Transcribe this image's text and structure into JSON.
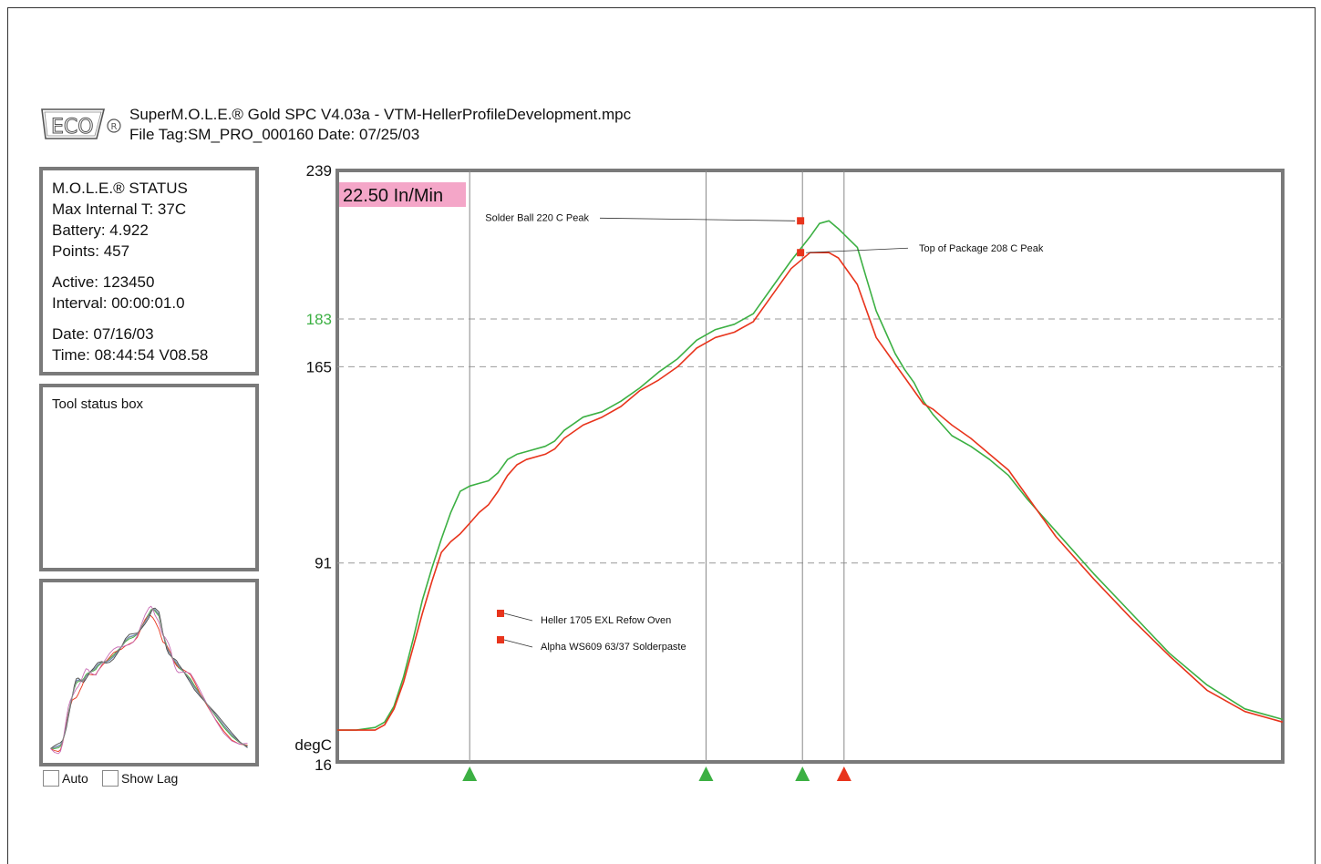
{
  "header": {
    "logo_icon": "eco-logo-icon",
    "line1": "SuperM.O.L.E.® Gold SPC  V4.03a - VTM-HellerProfileDevelopment.mpc",
    "line2": "File Tag:SM_PRO_000160    Date: 07/25/03"
  },
  "status": {
    "title": "M.O.L.E.® STATUS",
    "max_internal": "Max Internal T: 37C",
    "battery": "Battery: 4.922",
    "points": "Points: 457",
    "active": "Active: 123450",
    "interval": "Interval: 00:00:01.0",
    "date": "Date: 07/16/03",
    "time": "Time: 08:44:54  V08.58"
  },
  "tool_status": {
    "label": "Tool status box"
  },
  "controls": {
    "auto_label": "Auto",
    "show_lag_label": "Show Lag"
  },
  "chart_data": {
    "type": "line",
    "ylabel": "degC",
    "ylim": [
      16,
      239
    ],
    "yticks": [
      "239",
      "183",
      "165",
      "91",
      "16"
    ],
    "gridlines": [
      183,
      165,
      91
    ],
    "highlight_tick": "183",
    "speed_label": "22.50 In/Min",
    "colors": {
      "green": "#3cb043",
      "red": "#e8341c",
      "highlight": "#3cb043",
      "speed_bg": "#f4a6c8"
    },
    "series": [
      {
        "color": "#3cb043",
        "x": [
          0,
          2,
          4,
          5,
          6,
          7,
          8,
          9,
          10,
          11,
          12,
          13,
          14,
          15,
          16,
          17,
          18,
          19,
          20,
          22,
          23,
          24,
          26,
          28,
          30,
          32,
          34,
          36,
          38,
          40,
          42,
          44,
          46,
          48,
          50,
          51,
          52,
          53,
          55,
          56,
          57,
          58,
          59,
          60,
          61,
          62,
          63,
          64,
          65,
          67,
          69,
          71,
          73,
          76,
          80,
          84,
          88,
          92,
          96,
          100
        ],
        "y": [
          28,
          28,
          29,
          31,
          37,
          48,
          62,
          77,
          89,
          100,
          110,
          118,
          120,
          121,
          122,
          125,
          130,
          132,
          133,
          135,
          137,
          141,
          146,
          148,
          152,
          157,
          163,
          168,
          175,
          179,
          181,
          185,
          195,
          205,
          214,
          219,
          220,
          217,
          210,
          198,
          186,
          178,
          170,
          164,
          159,
          152,
          147,
          143,
          139,
          135,
          130,
          124,
          115,
          103,
          87,
          72,
          57,
          45,
          36,
          32
        ]
      },
      {
        "color": "#e8341c",
        "x": [
          0,
          2,
          4,
          5,
          6,
          7,
          8,
          9,
          10,
          11,
          12,
          13,
          14,
          15,
          16,
          17,
          18,
          19,
          20,
          22,
          23,
          24,
          26,
          28,
          30,
          32,
          34,
          36,
          38,
          40,
          42,
          44,
          46,
          48,
          50,
          51,
          52,
          53,
          55,
          56,
          57,
          58,
          59,
          60,
          61,
          62,
          63,
          64,
          65,
          67,
          69,
          71,
          73,
          76,
          80,
          84,
          88,
          92,
          96,
          100
        ],
        "y": [
          28,
          28,
          28,
          30,
          36,
          46,
          59,
          72,
          84,
          95,
          99,
          102,
          106,
          110,
          113,
          118,
          124,
          128,
          130,
          132,
          134,
          138,
          143,
          146,
          150,
          156,
          160,
          165,
          172,
          176,
          178,
          182,
          192,
          202,
          208,
          208,
          208,
          206,
          196,
          186,
          176,
          171,
          166,
          161,
          156,
          151,
          149,
          146,
          143,
          138,
          132,
          126,
          116,
          101,
          85,
          70,
          56,
          43,
          35,
          31
        ]
      }
    ],
    "markers": [
      {
        "x": 14,
        "color": "#3cb043"
      },
      {
        "x": 39,
        "color": "#3cb043"
      },
      {
        "x": 49.2,
        "color": "#3cb043"
      },
      {
        "x": 53.6,
        "color": "#e8341c"
      }
    ],
    "annotations": [
      {
        "text": "Solder Ball 220 C Peak",
        "x": 49,
        "y": 220,
        "side": "left"
      },
      {
        "text": "Top of Package 208 C Peak",
        "x": 49,
        "y": 208,
        "side": "right"
      }
    ],
    "legend": [
      {
        "text": "Heller 1705 EXL Refow Oven",
        "color": "#e8341c"
      },
      {
        "text": "Alpha WS609 63/37 Solderpaste",
        "color": "#e8341c"
      }
    ]
  }
}
